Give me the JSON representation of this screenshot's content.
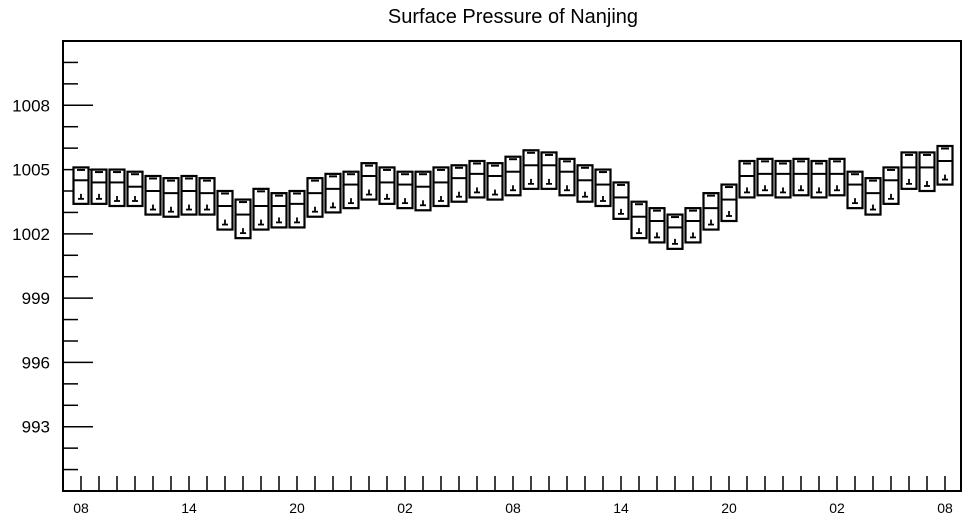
{
  "chart_data": {
    "type": "boxplot",
    "title": "Surface Pressure of Nanjing",
    "xlabel": "",
    "ylabel": "",
    "ylim": [
      990,
      1011
    ],
    "yticks": [
      993,
      996,
      999,
      1002,
      1005,
      1008
    ],
    "x_tick_labels": [
      "08",
      "14",
      "20",
      "02",
      "08",
      "14",
      "20",
      "02",
      "08"
    ],
    "grid": false,
    "boxes": [
      {
        "x": 0,
        "q3": 1005.1,
        "median": 1004.5,
        "q1": 1003.4
      },
      {
        "x": 1,
        "q3": 1005.0,
        "median": 1004.4,
        "q1": 1003.4
      },
      {
        "x": 2,
        "q3": 1005.0,
        "median": 1004.4,
        "q1": 1003.3
      },
      {
        "x": 3,
        "q3": 1004.9,
        "median": 1004.2,
        "q1": 1003.3
      },
      {
        "x": 4,
        "q3": 1004.7,
        "median": 1004.0,
        "q1": 1002.9
      },
      {
        "x": 5,
        "q3": 1004.6,
        "median": 1003.9,
        "q1": 1002.8
      },
      {
        "x": 6,
        "q3": 1004.7,
        "median": 1004.0,
        "q1": 1002.9
      },
      {
        "x": 7,
        "q3": 1004.6,
        "median": 1003.9,
        "q1": 1002.9
      },
      {
        "x": 8,
        "q3": 1004.0,
        "median": 1003.3,
        "q1": 1002.2
      },
      {
        "x": 9,
        "q3": 1003.6,
        "median": 1002.9,
        "q1": 1001.8
      },
      {
        "x": 10,
        "q3": 1004.1,
        "median": 1003.3,
        "q1": 1002.2
      },
      {
        "x": 11,
        "q3": 1003.9,
        "median": 1003.3,
        "q1": 1002.3
      },
      {
        "x": 12,
        "q3": 1004.0,
        "median": 1003.4,
        "q1": 1002.3
      },
      {
        "x": 13,
        "q3": 1004.6,
        "median": 1003.9,
        "q1": 1002.8
      },
      {
        "x": 14,
        "q3": 1004.8,
        "median": 1004.1,
        "q1": 1003.0
      },
      {
        "x": 15,
        "q3": 1004.9,
        "median": 1004.3,
        "q1": 1003.2
      },
      {
        "x": 16,
        "q3": 1005.3,
        "median": 1004.7,
        "q1": 1003.6
      },
      {
        "x": 17,
        "q3": 1005.1,
        "median": 1004.4,
        "q1": 1003.4
      },
      {
        "x": 18,
        "q3": 1004.9,
        "median": 1004.3,
        "q1": 1003.2
      },
      {
        "x": 19,
        "q3": 1004.9,
        "median": 1004.2,
        "q1": 1003.1
      },
      {
        "x": 20,
        "q3": 1005.1,
        "median": 1004.4,
        "q1": 1003.3
      },
      {
        "x": 21,
        "q3": 1005.2,
        "median": 1004.6,
        "q1": 1003.5
      },
      {
        "x": 22,
        "q3": 1005.4,
        "median": 1004.8,
        "q1": 1003.7
      },
      {
        "x": 23,
        "q3": 1005.3,
        "median": 1004.7,
        "q1": 1003.6
      },
      {
        "x": 24,
        "q3": 1005.6,
        "median": 1004.9,
        "q1": 1003.8
      },
      {
        "x": 25,
        "q3": 1005.9,
        "median": 1005.2,
        "q1": 1004.1
      },
      {
        "x": 26,
        "q3": 1005.8,
        "median": 1005.2,
        "q1": 1004.1
      },
      {
        "x": 27,
        "q3": 1005.5,
        "median": 1004.9,
        "q1": 1003.8
      },
      {
        "x": 28,
        "q3": 1005.2,
        "median": 1004.5,
        "q1": 1003.5
      },
      {
        "x": 29,
        "q3": 1005.0,
        "median": 1004.3,
        "q1": 1003.3
      },
      {
        "x": 30,
        "q3": 1004.4,
        "median": 1003.7,
        "q1": 1002.7
      },
      {
        "x": 31,
        "q3": 1003.5,
        "median": 1002.8,
        "q1": 1001.8
      },
      {
        "x": 32,
        "q3": 1003.2,
        "median": 1002.6,
        "q1": 1001.6
      },
      {
        "x": 33,
        "q3": 1002.9,
        "median": 1002.3,
        "q1": 1001.3
      },
      {
        "x": 34,
        "q3": 1003.2,
        "median": 1002.6,
        "q1": 1001.6
      },
      {
        "x": 35,
        "q3": 1003.9,
        "median": 1003.2,
        "q1": 1002.2
      },
      {
        "x": 36,
        "q3": 1004.3,
        "median": 1003.6,
        "q1": 1002.6
      },
      {
        "x": 37,
        "q3": 1005.4,
        "median": 1004.7,
        "q1": 1003.7
      },
      {
        "x": 38,
        "q3": 1005.5,
        "median": 1004.8,
        "q1": 1003.8
      },
      {
        "x": 39,
        "q3": 1005.4,
        "median": 1004.8,
        "q1": 1003.7
      },
      {
        "x": 40,
        "q3": 1005.5,
        "median": 1004.8,
        "q1": 1003.8
      },
      {
        "x": 41,
        "q3": 1005.4,
        "median": 1004.8,
        "q1": 1003.7
      },
      {
        "x": 42,
        "q3": 1005.5,
        "median": 1004.8,
        "q1": 1003.8
      },
      {
        "x": 43,
        "q3": 1004.9,
        "median": 1004.3,
        "q1": 1003.2
      },
      {
        "x": 44,
        "q3": 1004.6,
        "median": 1003.9,
        "q1": 1002.9
      },
      {
        "x": 45,
        "q3": 1005.1,
        "median": 1004.5,
        "q1": 1003.4
      },
      {
        "x": 46,
        "q3": 1005.8,
        "median": 1005.1,
        "q1": 1004.1
      },
      {
        "x": 47,
        "q3": 1005.8,
        "median": 1005.1,
        "q1": 1004.0
      },
      {
        "x": 48,
        "q3": 1006.1,
        "median": 1005.4,
        "q1": 1004.3
      }
    ]
  }
}
